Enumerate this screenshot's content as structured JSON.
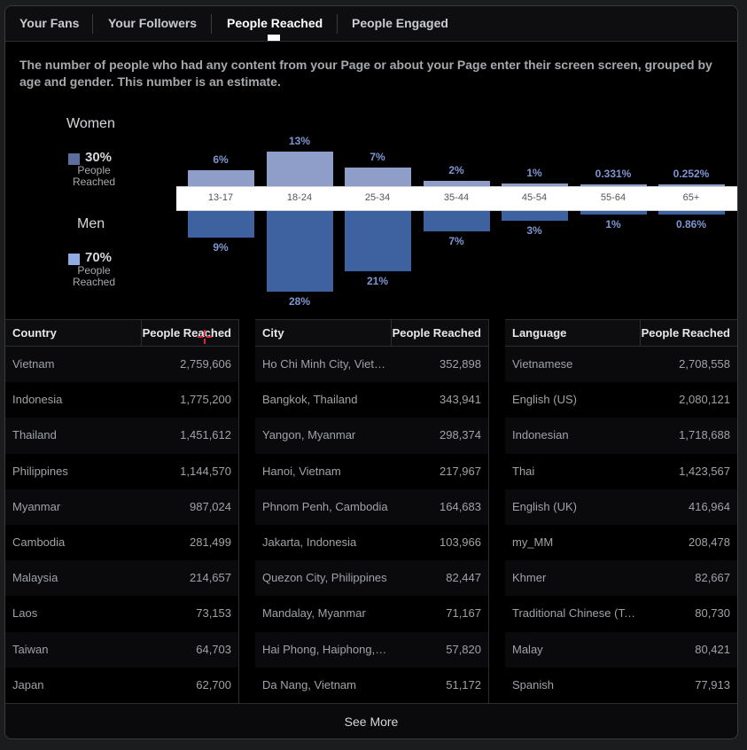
{
  "tabs": [
    "Your Fans",
    "Your Followers",
    "People Reached",
    "People Engaged"
  ],
  "description": "The number of people who had any content from your Page or about your Page enter their screen screen, grouped by age and gender. This number is an estimate.",
  "legend": {
    "women": {
      "title": "Women",
      "pct": "30%",
      "sub": "People Reached",
      "color": "#5c6e9d"
    },
    "men": {
      "title": "Men",
      "pct": "70%",
      "sub": "People Reached",
      "color": "#90abe0"
    }
  },
  "chart_data": {
    "type": "bar",
    "categories": [
      "13-17",
      "18-24",
      "25-34",
      "35-44",
      "45-54",
      "55-64",
      "65+"
    ],
    "series": [
      {
        "name": "Women",
        "values": [
          6,
          13,
          7,
          2,
          1,
          0.331,
          0.252
        ],
        "labels": [
          "6%",
          "13%",
          "7%",
          "2%",
          "1%",
          "0.331%",
          "0.252%"
        ]
      },
      {
        "name": "Men",
        "values": [
          9,
          28,
          21,
          7,
          3,
          1,
          0.86
        ],
        "labels": [
          "9%",
          "28%",
          "21%",
          "7%",
          "3%",
          "1%",
          "0.86%"
        ]
      }
    ]
  },
  "tables": {
    "country": {
      "headers": [
        "Country",
        "People Reached"
      ],
      "rows": [
        [
          "Vietnam",
          "2,759,606"
        ],
        [
          "Indonesia",
          "1,775,200"
        ],
        [
          "Thailand",
          "1,451,612"
        ],
        [
          "Philippines",
          "1,144,570"
        ],
        [
          "Myanmar",
          "987,024"
        ],
        [
          "Cambodia",
          "281,499"
        ],
        [
          "Malaysia",
          "214,657"
        ],
        [
          "Laos",
          "73,153"
        ],
        [
          "Taiwan",
          "64,703"
        ],
        [
          "Japan",
          "62,700"
        ]
      ]
    },
    "city": {
      "headers": [
        "City",
        "People Reached"
      ],
      "rows": [
        [
          "Ho Chi Minh City, Vietn…",
          "352,898"
        ],
        [
          "Bangkok, Thailand",
          "343,941"
        ],
        [
          "Yangon, Myanmar",
          "298,374"
        ],
        [
          "Hanoi, Vietnam",
          "217,967"
        ],
        [
          "Phnom Penh, Cambodia",
          "164,683"
        ],
        [
          "Jakarta, Indonesia",
          "103,966"
        ],
        [
          "Quezon City, Philippines",
          "82,447"
        ],
        [
          "Mandalay, Myanmar",
          "71,167"
        ],
        [
          "Hai Phong, Haiphong, …",
          "57,820"
        ],
        [
          "Da Nang, Vietnam",
          "51,172"
        ]
      ]
    },
    "language": {
      "headers": [
        "Language",
        "People Reached"
      ],
      "rows": [
        [
          "Vietnamese",
          "2,708,558"
        ],
        [
          "English (US)",
          "2,080,121"
        ],
        [
          "Indonesian",
          "1,718,688"
        ],
        [
          "Thai",
          "1,423,567"
        ],
        [
          "English (UK)",
          "416,964"
        ],
        [
          "my_MM",
          "208,478"
        ],
        [
          "Khmer",
          "82,667"
        ],
        [
          "Traditional Chinese (Ta…",
          "80,730"
        ],
        [
          "Malay",
          "80,421"
        ],
        [
          "Spanish",
          "77,913"
        ]
      ]
    }
  },
  "see_more": "See More"
}
